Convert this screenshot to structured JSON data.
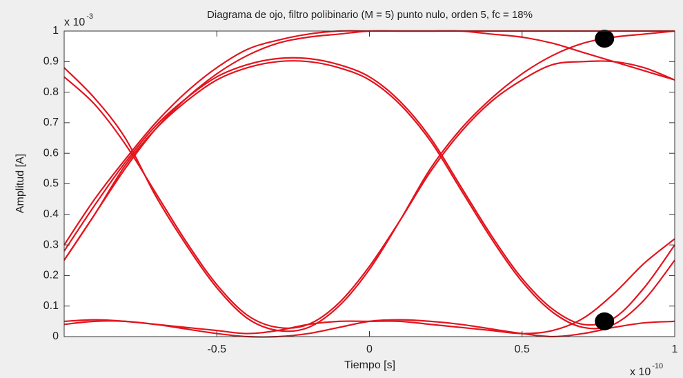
{
  "chart_data": {
    "type": "line",
    "title": "Diagrama de ojo, filtro polibinario (M = 5) punto nulo, orden 5, fc = 18%",
    "xlabel": "Tiempo [s]",
    "ylabel": "Amplitud [A]",
    "x_multiplier": {
      "base": "x 10",
      "exp": "-10"
    },
    "y_multiplier": {
      "base": "x 10",
      "exp": "-3"
    },
    "xlim": [
      -1,
      1
    ],
    "ylim": [
      0,
      1
    ],
    "xticks": [
      -0.5,
      0,
      0.5,
      1
    ],
    "yticks": [
      0,
      0.1,
      0.2,
      0.3,
      0.4,
      0.5,
      0.6,
      0.7,
      0.8,
      0.9,
      1
    ],
    "grid": false,
    "x": [
      -1,
      -0.9,
      -0.8,
      -0.7,
      -0.6,
      -0.5,
      -0.4,
      -0.3,
      -0.2,
      -0.1,
      0,
      0.1,
      0.2,
      0.3,
      0.4,
      0.5,
      0.6,
      0.7,
      0.8,
      0.9,
      1
    ],
    "series": [
      {
        "color": "#e3141e",
        "values": [
          0.3,
          0.45,
          0.58,
          0.7,
          0.8,
          0.88,
          0.94,
          0.97,
          0.99,
          1,
          1,
          1,
          1,
          1,
          1,
          1,
          1,
          1,
          1,
          1,
          1
        ]
      },
      {
        "color": "#e3141e",
        "values": [
          0.25,
          0.4,
          0.56,
          0.68,
          0.77,
          0.84,
          0.88,
          0.9,
          0.9,
          0.88,
          0.84,
          0.76,
          0.64,
          0.48,
          0.32,
          0.18,
          0.08,
          0.03,
          0.04,
          0.12,
          0.25
        ]
      },
      {
        "color": "#e3141e",
        "values": [
          0.28,
          0.43,
          0.57,
          0.69,
          0.78,
          0.85,
          0.89,
          0.91,
          0.91,
          0.89,
          0.85,
          0.77,
          0.65,
          0.49,
          0.33,
          0.19,
          0.09,
          0.04,
          0.06,
          0.16,
          0.3
        ]
      },
      {
        "color": "#e3141e",
        "values": [
          0.88,
          0.78,
          0.65,
          0.46,
          0.3,
          0.16,
          0.06,
          0.02,
          0.03,
          0.1,
          0.22,
          0.38,
          0.55,
          0.68,
          0.78,
          0.86,
          0.92,
          0.96,
          0.98,
          0.99,
          1
        ]
      },
      {
        "color": "#e3141e",
        "values": [
          0.85,
          0.76,
          0.63,
          0.47,
          0.31,
          0.17,
          0.07,
          0.03,
          0.04,
          0.11,
          0.23,
          0.38,
          0.54,
          0.67,
          0.77,
          0.84,
          0.89,
          0.9,
          0.9,
          0.88,
          0.84
        ]
      },
      {
        "color": "#e3141e",
        "values": [
          0.25,
          0.4,
          0.55,
          0.68,
          0.78,
          0.86,
          0.92,
          0.96,
          0.98,
          0.99,
          1,
          1,
          1,
          1,
          0.99,
          0.98,
          0.96,
          0.93,
          0.9,
          0.87,
          0.84
        ]
      },
      {
        "color": "#e3141e",
        "values": [
          0.05,
          0.055,
          0.05,
          0.04,
          0.025,
          0.01,
          0,
          0,
          0.01,
          0.03,
          0.05,
          0.055,
          0.05,
          0.04,
          0.025,
          0.01,
          0,
          0.01,
          0.03,
          0.045,
          0.05
        ]
      },
      {
        "color": "#e3141e",
        "values": [
          0.04,
          0.05,
          0.05,
          0.04,
          0.03,
          0.02,
          0.01,
          0.02,
          0.04,
          0.05,
          0.05,
          0.05,
          0.04,
          0.03,
          0.02,
          0.01,
          0.02,
          0.06,
          0.14,
          0.24,
          0.32
        ]
      }
    ],
    "markers": {
      "color": "#000000",
      "x": [
        0.77,
        0.77
      ],
      "values": [
        0.975,
        0.05
      ]
    }
  }
}
